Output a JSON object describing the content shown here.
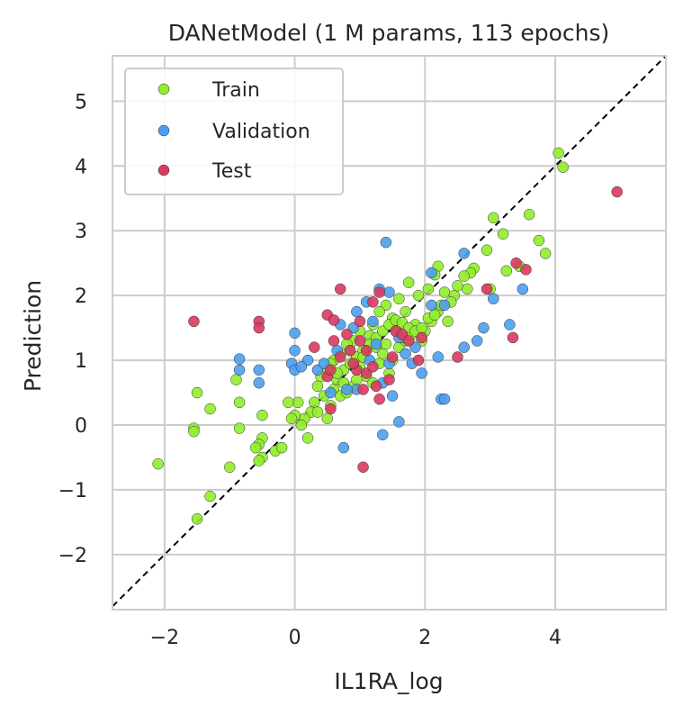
{
  "chart_data": {
    "type": "scatter",
    "title": "DANetModel (1 M params, 113 epochs)",
    "xlabel": "IL1RA_log",
    "ylabel": "Prediction",
    "xlim": [
      -2.8,
      5.7
    ],
    "ylim": [
      -2.85,
      5.7
    ],
    "xticks": [
      -2,
      0,
      2,
      4
    ],
    "xtick_labels": [
      "−2",
      "0",
      "2",
      "4"
    ],
    "yticks": [
      -2,
      -1,
      0,
      1,
      2,
      3,
      4,
      5
    ],
    "ytick_labels": [
      "−2",
      "−1",
      "0",
      "1",
      "2",
      "3",
      "4",
      "5"
    ],
    "grid": true,
    "legend_position": "top-left",
    "reference_line": "y = x (dashed)",
    "series": [
      {
        "name": "Train",
        "color": "#90ee2a",
        "points": [
          [
            4.05,
            4.2
          ],
          [
            4.12,
            3.98
          ],
          [
            3.6,
            3.25
          ],
          [
            3.75,
            2.85
          ],
          [
            3.85,
            2.65
          ],
          [
            3.05,
            3.2
          ],
          [
            3.2,
            2.95
          ],
          [
            2.95,
            2.7
          ],
          [
            3.45,
            2.45
          ],
          [
            3.25,
            2.38
          ],
          [
            2.75,
            2.42
          ],
          [
            2.7,
            2.35
          ],
          [
            2.6,
            2.3
          ],
          [
            2.65,
            2.1
          ],
          [
            3.0,
            2.1
          ],
          [
            2.2,
            2.45
          ],
          [
            2.15,
            2.32
          ],
          [
            2.05,
            2.1
          ],
          [
            2.3,
            2.05
          ],
          [
            2.45,
            2.0
          ],
          [
            1.75,
            2.2
          ],
          [
            1.9,
            2.0
          ],
          [
            1.6,
            1.95
          ],
          [
            1.4,
            1.85
          ],
          [
            1.3,
            1.75
          ],
          [
            1.5,
            1.65
          ],
          [
            1.55,
            1.5
          ],
          [
            1.85,
            1.55
          ],
          [
            2.0,
            1.45
          ],
          [
            2.1,
            1.6
          ],
          [
            2.35,
            1.6
          ],
          [
            2.2,
            1.75
          ],
          [
            1.7,
            1.75
          ],
          [
            1.2,
            1.55
          ],
          [
            1.15,
            1.38
          ],
          [
            1.0,
            1.45
          ],
          [
            0.9,
            1.3
          ],
          [
            0.8,
            1.25
          ],
          [
            0.7,
            1.1
          ],
          [
            0.6,
            1.0
          ],
          [
            0.55,
            0.95
          ],
          [
            0.5,
            0.85
          ],
          [
            0.4,
            0.75
          ],
          [
            0.35,
            0.6
          ],
          [
            0.6,
            0.55
          ],
          [
            0.7,
            0.45
          ],
          [
            0.8,
            0.5
          ],
          [
            0.9,
            0.6
          ],
          [
            1.0,
            0.9
          ],
          [
            1.1,
            0.75
          ],
          [
            1.25,
            1.2
          ],
          [
            1.35,
            1.1
          ],
          [
            1.5,
            1.0
          ],
          [
            1.6,
            1.2
          ],
          [
            1.7,
            1.3
          ],
          [
            1.8,
            1.4
          ],
          [
            1.95,
            1.3
          ],
          [
            1.45,
            0.8
          ],
          [
            0.45,
            0.45
          ],
          [
            0.3,
            0.35
          ],
          [
            0.25,
            0.2
          ],
          [
            0.15,
            0.1
          ],
          [
            0.05,
            0.35
          ],
          [
            0.0,
            0.15
          ],
          [
            -0.1,
            0.35
          ],
          [
            -0.3,
            -0.4
          ],
          [
            -0.2,
            -0.35
          ],
          [
            -0.5,
            -0.2
          ],
          [
            -0.55,
            -0.3
          ],
          [
            -0.5,
            -0.5
          ],
          [
            -0.55,
            -0.55
          ],
          [
            -0.6,
            -0.35
          ],
          [
            -0.5,
            0.15
          ],
          [
            -0.85,
            0.35
          ],
          [
            -0.9,
            0.7
          ],
          [
            -0.85,
            -0.05
          ],
          [
            -1.0,
            -0.65
          ],
          [
            -1.3,
            -1.1
          ],
          [
            -1.5,
            -1.45
          ],
          [
            -1.5,
            0.5
          ],
          [
            -1.55,
            -0.05
          ],
          [
            -1.55,
            -0.1
          ],
          [
            -1.3,
            0.25
          ],
          [
            -2.1,
            -0.6
          ],
          [
            0.2,
            -0.2
          ],
          [
            0.1,
            0.0
          ],
          [
            -0.05,
            0.1
          ],
          [
            0.35,
            0.2
          ],
          [
            0.5,
            0.1
          ],
          [
            0.55,
            0.3
          ],
          [
            0.65,
            0.7
          ],
          [
            0.75,
            0.85
          ],
          [
            0.85,
            0.95
          ],
          [
            0.95,
            1.05
          ],
          [
            1.05,
            1.15
          ],
          [
            1.15,
            1.25
          ],
          [
            1.25,
            1.35
          ],
          [
            1.35,
            1.45
          ],
          [
            1.45,
            1.55
          ],
          [
            1.55,
            1.62
          ],
          [
            1.65,
            1.58
          ],
          [
            1.75,
            1.5
          ],
          [
            1.85,
            1.45
          ],
          [
            1.95,
            1.5
          ],
          [
            2.05,
            1.65
          ],
          [
            2.15,
            1.7
          ],
          [
            2.25,
            1.85
          ],
          [
            2.4,
            1.9
          ],
          [
            2.5,
            2.15
          ],
          [
            1.3,
            0.95
          ],
          [
            1.4,
            1.25
          ],
          [
            1.65,
            1.35
          ],
          [
            1.05,
            1.05
          ],
          [
            0.75,
            0.65
          ],
          [
            0.65,
            0.8
          ],
          [
            0.95,
            0.7
          ],
          [
            1.2,
            0.65
          ],
          [
            0.85,
            1.15
          ]
        ]
      },
      {
        "name": "Validation",
        "color": "#4b9ff0",
        "points": [
          [
            1.4,
            2.82
          ],
          [
            2.6,
            2.65
          ],
          [
            2.1,
            2.35
          ],
          [
            1.3,
            2.1
          ],
          [
            1.45,
            2.05
          ],
          [
            1.1,
            1.9
          ],
          [
            2.1,
            1.85
          ],
          [
            2.3,
            1.85
          ],
          [
            3.05,
            1.95
          ],
          [
            3.5,
            2.1
          ],
          [
            3.3,
            1.55
          ],
          [
            2.9,
            1.5
          ],
          [
            2.8,
            1.3
          ],
          [
            2.6,
            1.2
          ],
          [
            2.2,
            1.05
          ],
          [
            1.95,
            0.8
          ],
          [
            1.85,
            1.2
          ],
          [
            1.6,
            1.35
          ],
          [
            1.45,
            0.95
          ],
          [
            1.35,
            0.65
          ],
          [
            1.5,
            0.45
          ],
          [
            1.6,
            0.05
          ],
          [
            1.35,
            -0.15
          ],
          [
            0.75,
            -0.35
          ],
          [
            2.25,
            0.4
          ],
          [
            2.3,
            0.4
          ],
          [
            0.0,
            1.42
          ],
          [
            0.0,
            1.15
          ],
          [
            0.2,
            1.0
          ],
          [
            0.35,
            0.85
          ],
          [
            0.45,
            0.95
          ],
          [
            0.7,
            1.55
          ],
          [
            0.9,
            1.5
          ],
          [
            0.95,
            1.75
          ],
          [
            1.2,
            1.6
          ],
          [
            1.25,
            1.25
          ],
          [
            0.95,
            0.55
          ],
          [
            0.8,
            0.55
          ],
          [
            -0.55,
            0.85
          ],
          [
            -0.55,
            0.65
          ],
          [
            -0.85,
            0.85
          ],
          [
            -0.85,
            1.02
          ],
          [
            -0.05,
            0.95
          ],
          [
            0.0,
            0.85
          ],
          [
            0.1,
            0.9
          ],
          [
            0.55,
            0.5
          ],
          [
            0.65,
            1.15
          ],
          [
            1.15,
            1.0
          ],
          [
            1.7,
            1.1
          ],
          [
            1.8,
            0.95
          ]
        ]
      },
      {
        "name": "Test",
        "color": "#d93a5f",
        "points": [
          [
            4.95,
            3.6
          ],
          [
            3.4,
            2.5
          ],
          [
            3.55,
            2.4
          ],
          [
            3.35,
            1.35
          ],
          [
            2.95,
            2.1
          ],
          [
            2.5,
            1.05
          ],
          [
            1.95,
            1.35
          ],
          [
            1.9,
            1.0
          ],
          [
            1.3,
            2.05
          ],
          [
            1.0,
            1.6
          ],
          [
            1.2,
            1.9
          ],
          [
            0.7,
            2.1
          ],
          [
            0.5,
            1.7
          ],
          [
            0.3,
            1.2
          ],
          [
            0.5,
            0.75
          ],
          [
            0.55,
            0.85
          ],
          [
            0.6,
            1.3
          ],
          [
            0.7,
            1.05
          ],
          [
            0.8,
            1.4
          ],
          [
            0.85,
            1.15
          ],
          [
            0.95,
            0.85
          ],
          [
            1.05,
            0.55
          ],
          [
            1.1,
            0.8
          ],
          [
            1.2,
            0.9
          ],
          [
            1.25,
            0.6
          ],
          [
            1.3,
            0.4
          ],
          [
            1.45,
            0.7
          ],
          [
            1.5,
            1.05
          ],
          [
            1.55,
            1.45
          ],
          [
            1.65,
            1.4
          ],
          [
            1.75,
            1.3
          ],
          [
            0.55,
            0.25
          ],
          [
            1.05,
            -0.65
          ],
          [
            -0.55,
            1.6
          ],
          [
            -0.55,
            1.5
          ],
          [
            -1.55,
            1.6
          ],
          [
            1.0,
            1.3
          ],
          [
            1.1,
            1.15
          ],
          [
            0.9,
            0.95
          ],
          [
            0.6,
            1.62
          ]
        ]
      }
    ]
  }
}
